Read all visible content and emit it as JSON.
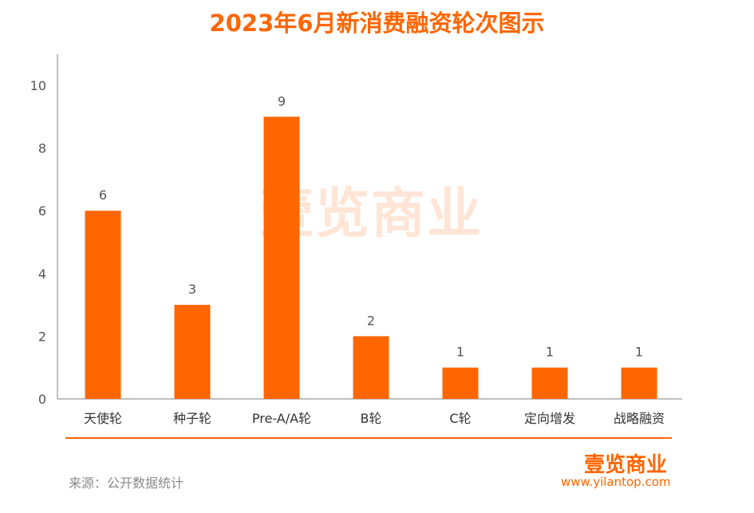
{
  "chart_data": {
    "type": "bar",
    "title": "2023年6月新消费融资轮次图示",
    "categories": [
      "天使轮",
      "种子轮",
      "Pre-A/A轮",
      "B轮",
      "C轮",
      "定向增发",
      "战略融资"
    ],
    "values": [
      6,
      3,
      9,
      2,
      1,
      1,
      1
    ],
    "ylim": [
      0,
      10
    ],
    "yticks": [
      0,
      2,
      4,
      6,
      8,
      10
    ],
    "grid": false,
    "bar_color": "#FF6600"
  },
  "watermark": "壹览商业",
  "source": "来源：公开数据统计",
  "logo": {
    "text": "壹览商业",
    "url": "www.yilantop.com"
  }
}
